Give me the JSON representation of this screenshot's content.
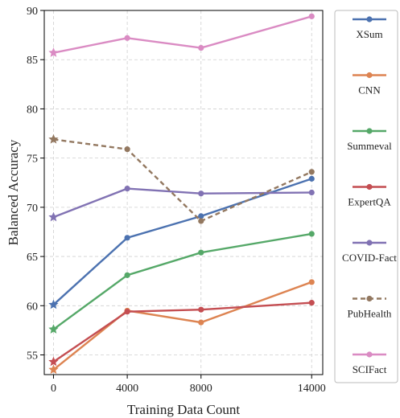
{
  "chart_data": {
    "type": "line",
    "xlabel": "Training Data Count",
    "ylabel": "Balanced Accuracy",
    "x": [
      0,
      4000,
      8000,
      14000
    ],
    "xlim": [
      -500,
      14600
    ],
    "ylim": [
      53,
      90
    ],
    "xticks": [
      0,
      4000,
      8000,
      14000
    ],
    "yticks": [
      55,
      60,
      65,
      70,
      75,
      80,
      85,
      90
    ],
    "grid": true,
    "legend_position": "right",
    "series": [
      {
        "name": "XSum",
        "color": "#4c72b0",
        "style": "solid",
        "values": [
          60.1,
          66.9,
          69.1,
          72.9
        ]
      },
      {
        "name": "CNN",
        "color": "#dd8452",
        "style": "solid",
        "values": [
          53.5,
          59.5,
          58.3,
          62.4
        ]
      },
      {
        "name": "Summeval",
        "color": "#55a868",
        "style": "solid",
        "values": [
          57.6,
          63.1,
          65.4,
          67.3
        ]
      },
      {
        "name": "ExpertQA",
        "color": "#c44e52",
        "style": "solid",
        "values": [
          54.3,
          59.4,
          59.6,
          60.3
        ]
      },
      {
        "name": "COVID-Fact",
        "color": "#8172b3",
        "style": "solid",
        "values": [
          69.0,
          71.9,
          71.4,
          71.5
        ]
      },
      {
        "name": "PubHealth",
        "color": "#937860",
        "style": "dashed",
        "values": [
          76.9,
          75.9,
          68.6,
          73.6
        ]
      },
      {
        "name": "SCIFact",
        "color": "#da8bc3",
        "style": "solid",
        "values": [
          85.7,
          87.2,
          86.2,
          89.4
        ]
      }
    ]
  }
}
